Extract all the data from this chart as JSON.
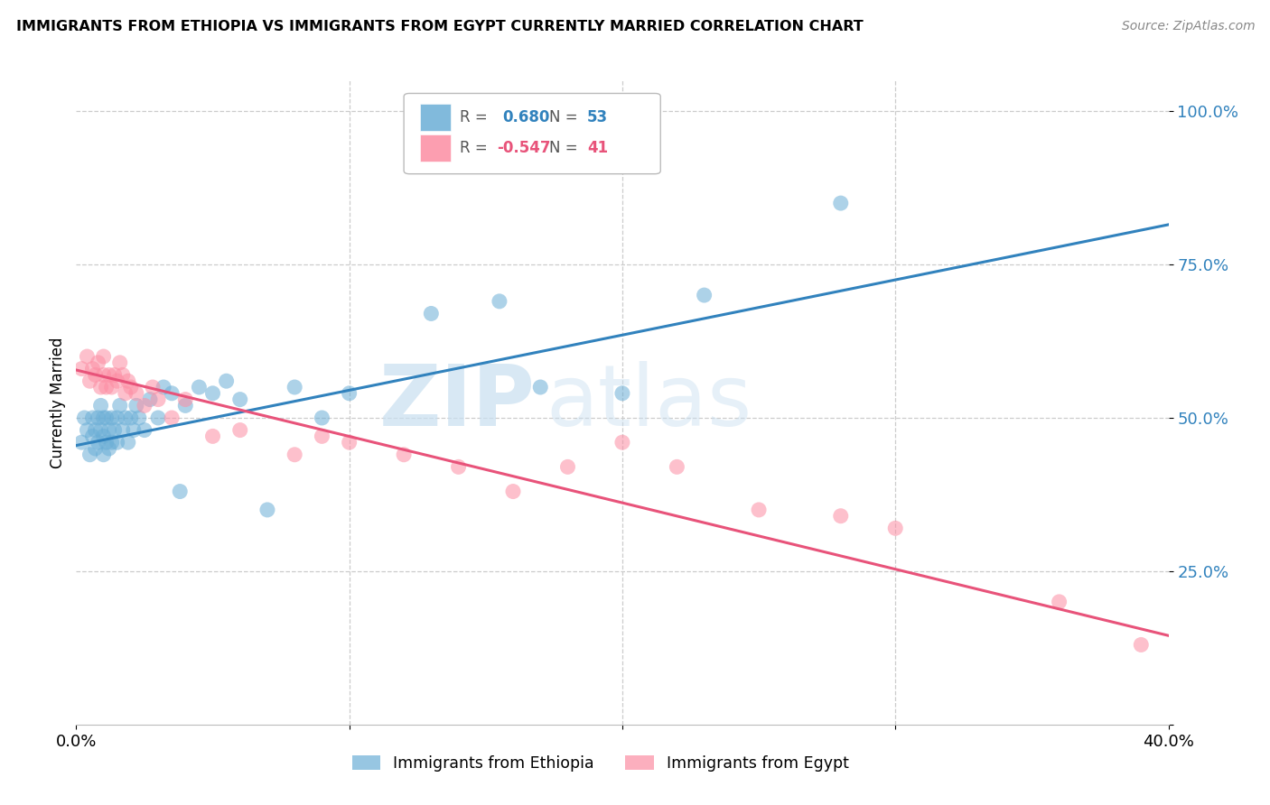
{
  "title": "IMMIGRANTS FROM ETHIOPIA VS IMMIGRANTS FROM EGYPT CURRENTLY MARRIED CORRELATION CHART",
  "source": "Source: ZipAtlas.com",
  "ylabel": "Currently Married",
  "xlim": [
    0.0,
    0.4
  ],
  "ylim": [
    0.0,
    1.05
  ],
  "ethiopia_color": "#6baed6",
  "egypt_color": "#fc8da3",
  "ethiopia_line_color": "#3182bd",
  "egypt_line_color": "#e8537a",
  "R_ethiopia": 0.68,
  "N_ethiopia": 53,
  "R_egypt": -0.547,
  "N_egypt": 41,
  "watermark_zip": "ZIP",
  "watermark_atlas": "atlas",
  "legend_label_ethiopia": "Immigrants from Ethiopia",
  "legend_label_egypt": "Immigrants from Egypt",
  "ethiopia_x": [
    0.002,
    0.003,
    0.004,
    0.005,
    0.006,
    0.006,
    0.007,
    0.007,
    0.008,
    0.008,
    0.009,
    0.009,
    0.01,
    0.01,
    0.01,
    0.011,
    0.011,
    0.012,
    0.012,
    0.013,
    0.013,
    0.014,
    0.015,
    0.015,
    0.016,
    0.017,
    0.018,
    0.019,
    0.02,
    0.021,
    0.022,
    0.023,
    0.025,
    0.027,
    0.03,
    0.032,
    0.035,
    0.038,
    0.04,
    0.045,
    0.05,
    0.055,
    0.06,
    0.07,
    0.08,
    0.09,
    0.1,
    0.13,
    0.155,
    0.17,
    0.2,
    0.23,
    0.28
  ],
  "ethiopia_y": [
    0.46,
    0.5,
    0.48,
    0.44,
    0.47,
    0.5,
    0.45,
    0.48,
    0.46,
    0.5,
    0.48,
    0.52,
    0.44,
    0.47,
    0.5,
    0.46,
    0.5,
    0.45,
    0.48,
    0.46,
    0.5,
    0.48,
    0.46,
    0.5,
    0.52,
    0.48,
    0.5,
    0.46,
    0.5,
    0.48,
    0.52,
    0.5,
    0.48,
    0.53,
    0.5,
    0.55,
    0.54,
    0.38,
    0.52,
    0.55,
    0.54,
    0.56,
    0.53,
    0.35,
    0.55,
    0.5,
    0.54,
    0.67,
    0.69,
    0.55,
    0.54,
    0.7,
    0.85
  ],
  "egypt_x": [
    0.002,
    0.004,
    0.005,
    0.006,
    0.007,
    0.008,
    0.009,
    0.01,
    0.01,
    0.011,
    0.012,
    0.013,
    0.014,
    0.015,
    0.016,
    0.017,
    0.018,
    0.019,
    0.02,
    0.022,
    0.025,
    0.028,
    0.03,
    0.035,
    0.04,
    0.05,
    0.06,
    0.08,
    0.09,
    0.1,
    0.12,
    0.14,
    0.16,
    0.18,
    0.2,
    0.22,
    0.25,
    0.28,
    0.3,
    0.36,
    0.39
  ],
  "egypt_y": [
    0.58,
    0.6,
    0.56,
    0.58,
    0.57,
    0.59,
    0.55,
    0.57,
    0.6,
    0.55,
    0.57,
    0.55,
    0.57,
    0.56,
    0.59,
    0.57,
    0.54,
    0.56,
    0.55,
    0.54,
    0.52,
    0.55,
    0.53,
    0.5,
    0.53,
    0.47,
    0.48,
    0.44,
    0.47,
    0.46,
    0.44,
    0.42,
    0.38,
    0.42,
    0.46,
    0.42,
    0.35,
    0.34,
    0.32,
    0.2,
    0.13
  ],
  "eth_line_x0": 0.0,
  "eth_line_y0": 0.455,
  "eth_line_x1": 0.4,
  "eth_line_y1": 0.815,
  "egy_line_x0": 0.0,
  "egy_line_y0": 0.578,
  "egy_line_x1": 0.4,
  "egy_line_y1": 0.145
}
